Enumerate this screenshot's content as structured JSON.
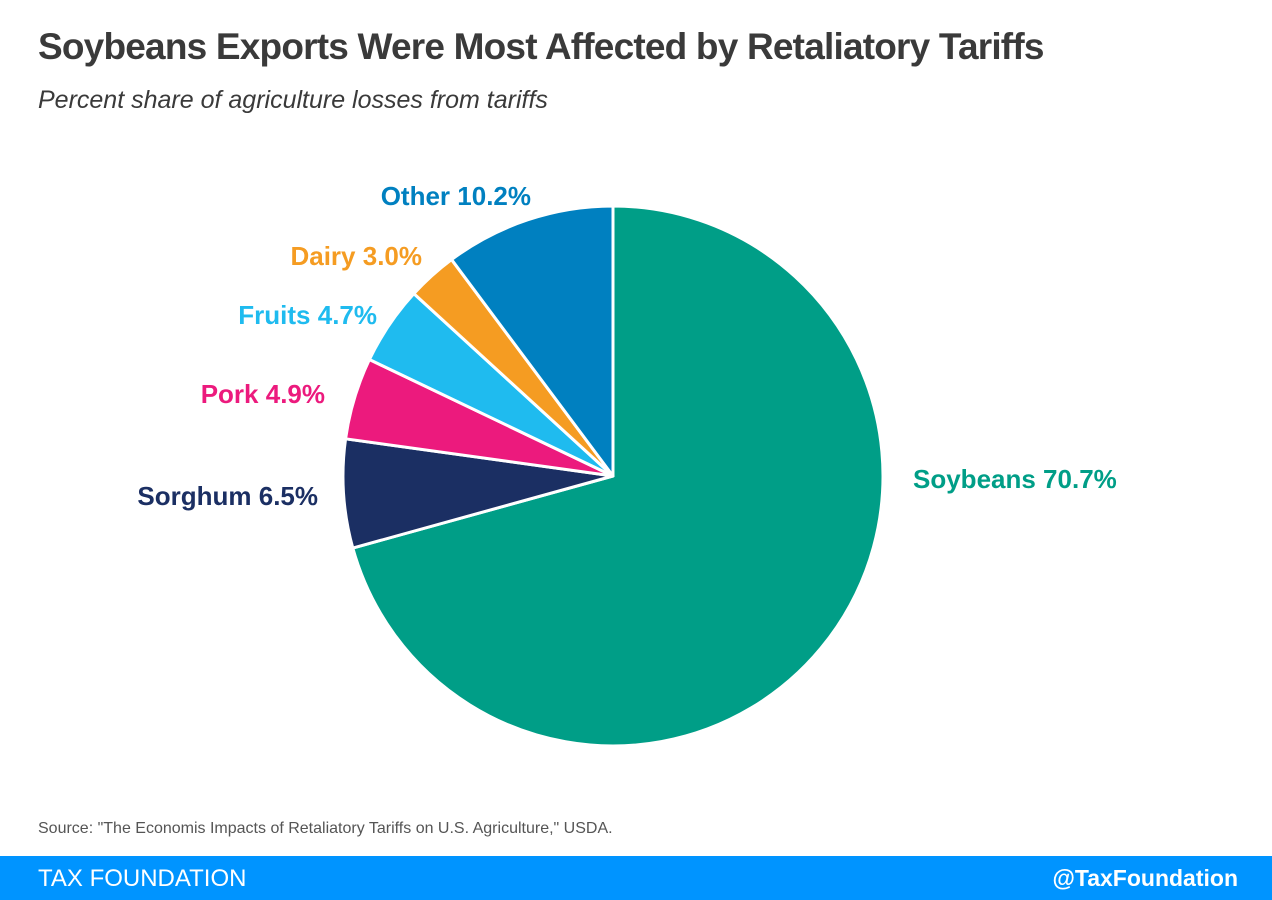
{
  "header": {
    "title": "Soybeans Exports Were Most Affected by Retaliatory Tariffs",
    "subtitle": "Percent share of agriculture losses from tariffs"
  },
  "chart_data": {
    "type": "pie",
    "title": "Soybeans Exports Were Most Affected by Retaliatory Tariffs",
    "subtitle": "Percent share of agriculture losses from tariffs",
    "unit": "%",
    "start": "12 o'clock",
    "direction": "clockwise",
    "slices": [
      {
        "name": "Soybeans",
        "value": 70.7,
        "label": "Soybeans 70.7%",
        "color": "#009e87"
      },
      {
        "name": "Sorghum",
        "value": 6.5,
        "label": "Sorghum 6.5%",
        "color": "#1b2f63"
      },
      {
        "name": "Pork",
        "value": 4.9,
        "label": "Pork 4.9%",
        "color": "#ec1a7d"
      },
      {
        "name": "Fruits",
        "value": 4.7,
        "label": "Fruits 4.7%",
        "color": "#1fbbef"
      },
      {
        "name": "Dairy",
        "value": 3.0,
        "label": "Dairy 3.0%",
        "color": "#f59c22"
      },
      {
        "name": "Other",
        "value": 10.2,
        "label": "Other 10.2%",
        "color": "#0080c0"
      }
    ]
  },
  "footer": {
    "source": "Source: \"The Economis Impacts of Retaliatory Tariffs on U.S. Agriculture,\" USDA.",
    "brand": "TAX FOUNDATION",
    "handle": "@TaxFoundation"
  },
  "colors": {
    "footer_bar": "#0094ff",
    "title_text": "#3a3a3a"
  }
}
